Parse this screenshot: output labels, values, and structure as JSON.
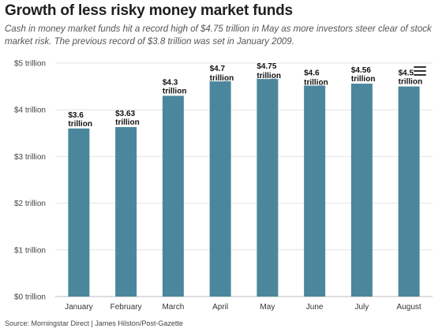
{
  "chart_data": {
    "type": "bar",
    "title": "Growth of less risky money market funds",
    "subtitle": "Cash in money market funds hit a record high of $4.75 trillion in May as more investors steer clear of stock market risk. The previous record of $3.8 trillion was set in January 2009.",
    "categories": [
      "January",
      "February",
      "March",
      "April",
      "May",
      "June",
      "July",
      "August"
    ],
    "values": [
      3.6,
      3.63,
      4.3,
      4.7,
      4.75,
      4.6,
      4.56,
      4.5
    ],
    "data_labels": [
      [
        "$3.6",
        "trillion"
      ],
      [
        "$3.63",
        "trillion"
      ],
      [
        "$4.3",
        "trillion"
      ],
      [
        "$4.7",
        "trillion"
      ],
      [
        "$4.75",
        "trillion"
      ],
      [
        "$4.6",
        "trillion"
      ],
      [
        "$4.56",
        "trillion"
      ],
      [
        "$4.5",
        "trillion"
      ]
    ],
    "yticks": [
      0,
      1,
      2,
      3,
      4,
      5
    ],
    "ytick_labels": [
      "$0 trillion",
      "$1 trillion",
      "$2 trillion",
      "$3 trillion",
      "$4 trillion",
      "$5 trillion"
    ],
    "ylim": [
      0,
      5
    ],
    "xlabel": "",
    "ylabel": "",
    "grid": true,
    "bar_color": "#4b879c",
    "grid_color": "#e2e2e2"
  },
  "source": "Source: Morningstar Direct | James Hilston/Post-Gazette",
  "menu_icon": "hamburger-menu-icon"
}
